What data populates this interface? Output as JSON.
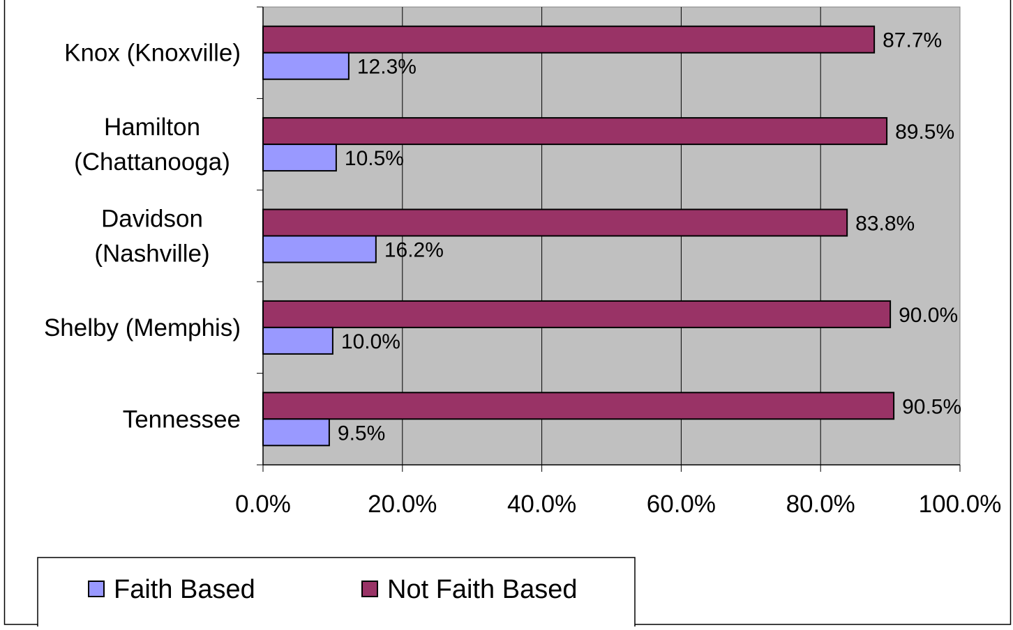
{
  "chart_data": {
    "type": "bar",
    "orientation": "horizontal",
    "categories": [
      [
        "Knox (Knoxville)"
      ],
      [
        "Hamilton",
        "(Chattanooga)"
      ],
      [
        "Davidson",
        "(Nashville)"
      ],
      [
        "Shelby (Memphis)"
      ],
      [
        "Tennessee"
      ]
    ],
    "series": [
      {
        "name": "Faith Based",
        "color": "#9999ff",
        "values": [
          12.3,
          10.5,
          16.2,
          10.0,
          9.5
        ],
        "labels": [
          "12.3%",
          "10.5%",
          "16.2%",
          "10.0%",
          "9.5%"
        ]
      },
      {
        "name": "Not Faith Based",
        "color": "#993366",
        "values": [
          87.7,
          89.5,
          83.8,
          90.0,
          90.5
        ],
        "labels": [
          "87.7%",
          "89.5%",
          "83.8%",
          "90.0%",
          "90.5%"
        ]
      }
    ],
    "xlim": [
      0,
      100
    ],
    "x_ticks": [
      "0.0%",
      "20.0%",
      "40.0%",
      "60.0%",
      "80.0%",
      "100.0%"
    ],
    "plot_background": "#c0c0c0",
    "grid": true,
    "legend_position": "bottom"
  }
}
